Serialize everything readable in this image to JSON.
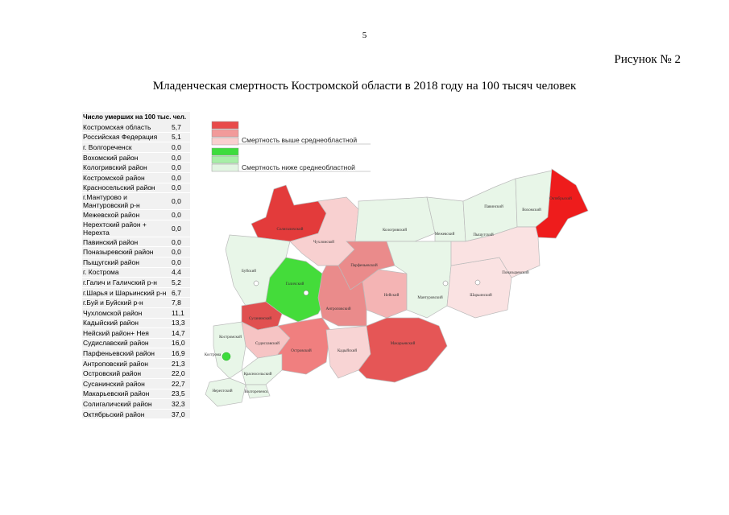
{
  "page_number": "5",
  "figure_label": "Рисунок № 2",
  "title": "Младенческая смертность Костромской области в 2018 году на 100 тысяч человек",
  "table": {
    "header": "Число умерших на 100 тыс. чел.",
    "rows": [
      [
        "Костромская область",
        "5,7"
      ],
      [
        "Российская Федерация",
        "5,1"
      ],
      [
        "г. Волгореченск",
        "0,0"
      ],
      [
        "Вохомский район",
        "0,0"
      ],
      [
        "Кологривский район",
        "0,0"
      ],
      [
        "Костромской район",
        "0,0"
      ],
      [
        "Красносельский район",
        "0,0"
      ],
      [
        "г.Мантурово и Мантуровский р-н",
        "0,0"
      ],
      [
        "Межевской район",
        "0,0"
      ],
      [
        "Нерехтский район + Нерехта",
        "0,0"
      ],
      [
        "Павинский район",
        "0,0"
      ],
      [
        "Поназыревский район",
        "0,0"
      ],
      [
        "Пыщугский район",
        "0,0"
      ],
      [
        "г. Кострома",
        "4,4"
      ],
      [
        "г.Галич и Галичский р-н",
        "5,2"
      ],
      [
        "г.Шарья и Шарьинский р-н",
        "6,7"
      ],
      [
        "г.Буй и Буйский р-н",
        "7,8"
      ],
      [
        "Чухломской район",
        "11,1"
      ],
      [
        "Кадыйский район",
        "13,3"
      ],
      [
        "Нейский район+ Нея",
        "14,7"
      ],
      [
        "Судиславский район",
        "16,0"
      ],
      [
        "Парфеньевский район",
        "16,9"
      ],
      [
        "Антроповский район",
        "21,3"
      ],
      [
        "Островский район",
        "22,0"
      ],
      [
        "Сусанинский район",
        "22,7"
      ],
      [
        "Макарьевский район",
        "23,5"
      ],
      [
        "Солигаличский район",
        "32,3"
      ],
      [
        "Октябрьский район",
        "37,0"
      ]
    ]
  },
  "legend": {
    "above": "Смертность выше среднеобластной",
    "below": "Смертность ниже среднеобластной"
  },
  "map": {
    "labels": [
      "Солигаличский",
      "Чухломской",
      "Кологривский",
      "Межевский",
      "Павинский",
      "Вохомский",
      "Октябрьский",
      "Пыщугский",
      "Буйский",
      "Галичский",
      "Парфеньевский",
      "Нейский",
      "Мантуровский",
      "Шарьинский",
      "Поназыревский",
      "Антроповский",
      "Сусанинский",
      "Судиславский",
      "Островский",
      "Кадыйский",
      "Макарьевский",
      "Костромской",
      "Кострома",
      "Красносельский",
      "Нерехтский",
      "Волгореченск"
    ]
  }
}
